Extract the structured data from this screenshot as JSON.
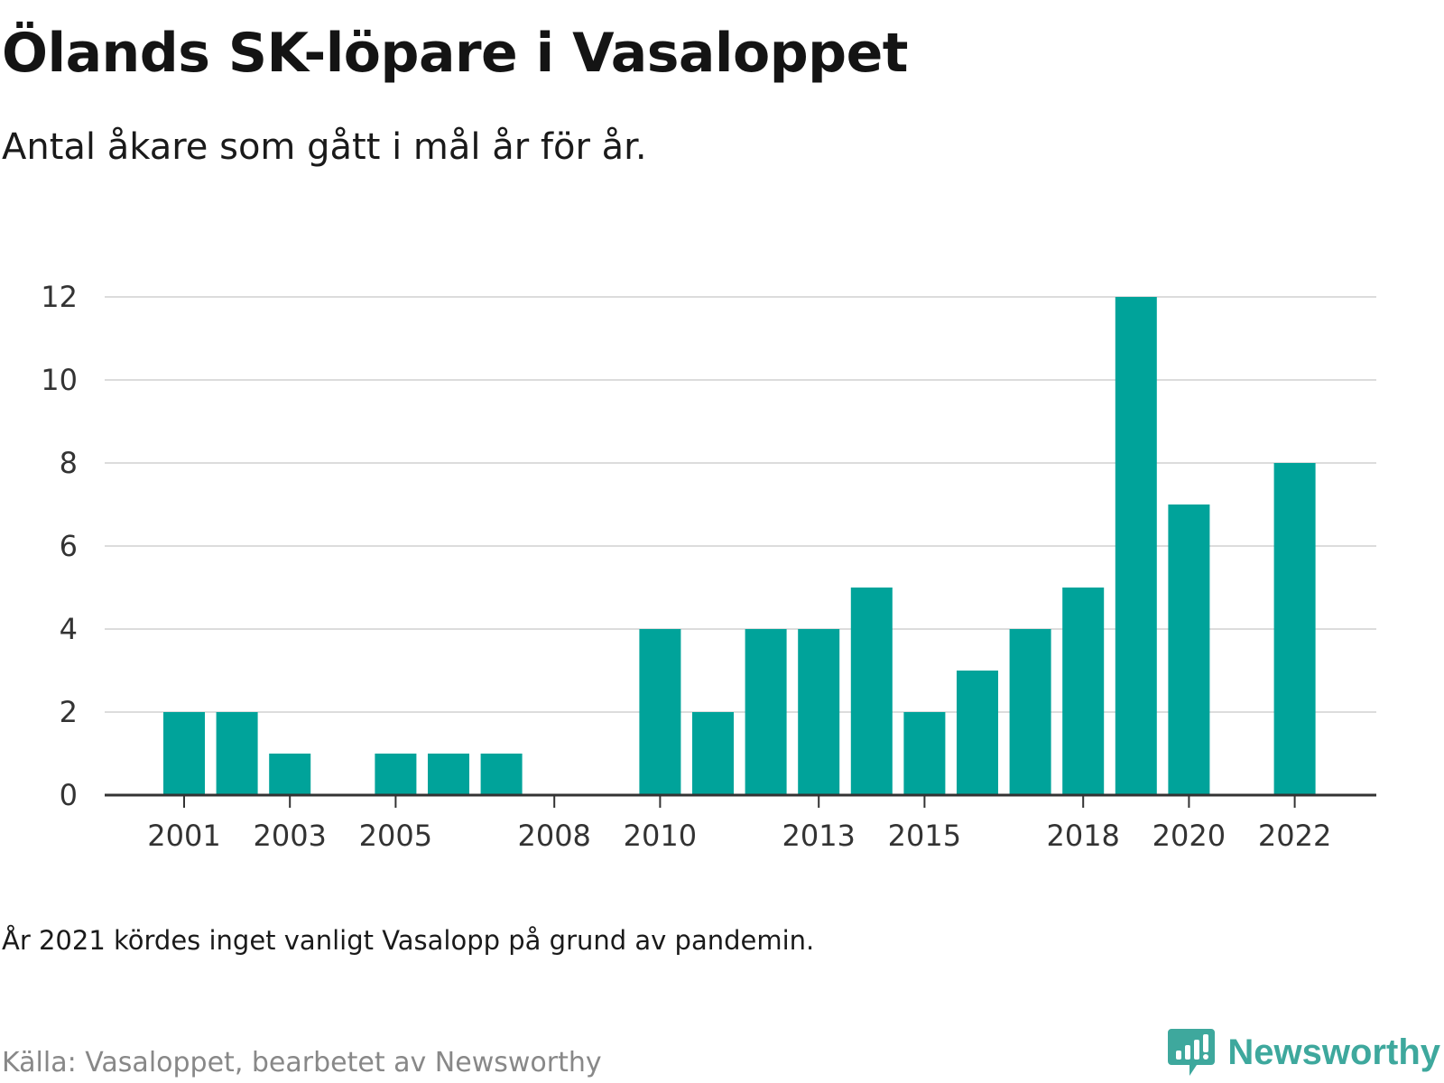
{
  "title": "Ölands SK-löpare i Vasaloppet",
  "subtitle": "Antal åkare som gått i mål år för år.",
  "note": "År 2021 kördes inget vanligt Vasalopp på grund av pandemin.",
  "source": "Källa: Vasaloppet, bearbetet av Newsworthy",
  "logo": {
    "text": "Newsworthy",
    "icon": "bar-chart-bubble-icon"
  },
  "colors": {
    "bar": "#00a39a",
    "grid": "#dcdcdc",
    "axis": "#333333",
    "brand": "#3ea89d"
  },
  "chart_data": {
    "type": "bar",
    "categories": [
      "2001",
      "2002",
      "2003",
      "2004",
      "2005",
      "2006",
      "2007",
      "2008",
      "2009",
      "2010",
      "2011",
      "2012",
      "2013",
      "2014",
      "2015",
      "2016",
      "2017",
      "2018",
      "2019",
      "2020",
      "2021",
      "2022"
    ],
    "values": [
      2,
      2,
      1,
      0,
      1,
      1,
      1,
      0,
      0,
      4,
      2,
      4,
      4,
      5,
      2,
      3,
      4,
      5,
      12,
      7,
      0,
      8
    ],
    "x_tick_labels": [
      "2001",
      "2003",
      "2005",
      "2008",
      "2010",
      "2013",
      "2015",
      "2018",
      "2020",
      "2022"
    ],
    "y_ticks": [
      0,
      2,
      4,
      6,
      8,
      10,
      12
    ],
    "ylim": [
      0,
      12
    ],
    "grid": true
  }
}
